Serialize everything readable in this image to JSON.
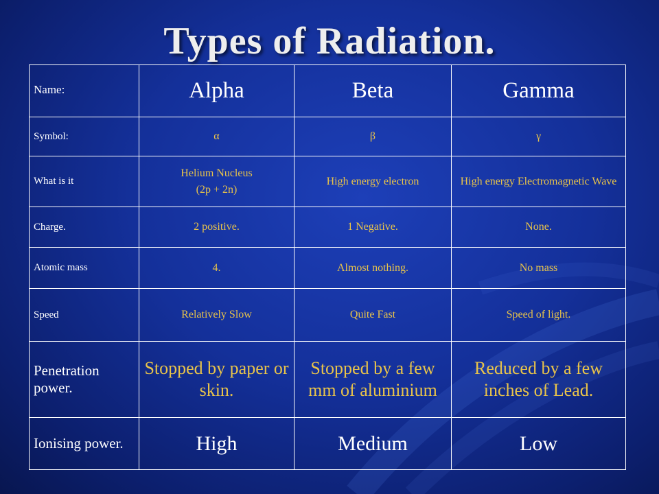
{
  "slide": {
    "title": "Types of Radiation."
  },
  "table": {
    "header": {
      "label": "Name:",
      "cols": [
        "Alpha",
        "Beta",
        "Gamma"
      ]
    },
    "rows": {
      "symbol": {
        "label": "Symbol:",
        "values": [
          "α",
          "β",
          "γ"
        ]
      },
      "what": {
        "label": "What is it",
        "alpha_line1": "Helium Nucleus",
        "alpha_line2": "(2p + 2n)",
        "beta": "High energy electron",
        "gamma": "High energy Electromagnetic Wave"
      },
      "charge": {
        "label": "Charge.",
        "values": [
          "2 positive.",
          "1 Negative.",
          "None."
        ]
      },
      "mass": {
        "label": "Atomic mass",
        "values": [
          "4.",
          "Almost nothing.",
          "No mass"
        ]
      },
      "speed": {
        "label": "Speed",
        "values": [
          "Relatively Slow",
          "Quite Fast",
          "Speed of light."
        ]
      },
      "penetration": {
        "label": "Penetration power.",
        "values": [
          "Stopped by paper or skin.",
          "Stopped by a few mm of aluminium",
          "Reduced by a few inches of Lead."
        ]
      },
      "ionising": {
        "label": "Ionising power.",
        "values": [
          "High",
          "Medium",
          "Low"
        ]
      }
    }
  },
  "colors": {
    "background": "#14309a",
    "label_text": "#ffffff",
    "value_text": "#e8c34a",
    "grid": "#ffffff"
  }
}
